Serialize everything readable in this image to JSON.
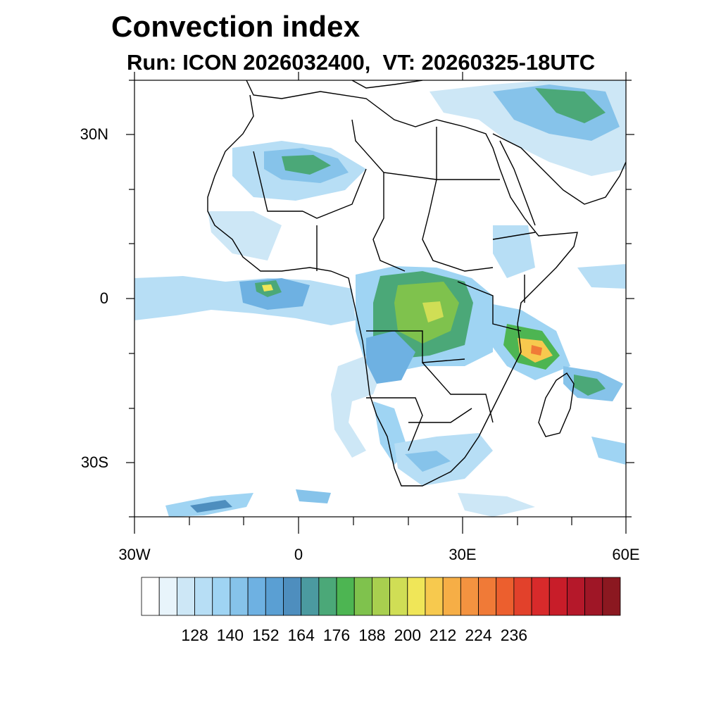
{
  "title": "Convection index",
  "subtitle": "Run: ICON 2026032400,  VT: 20260325-18UTC",
  "map": {
    "lat_labels": [
      "30N",
      "0",
      "30S"
    ],
    "lon_labels": [
      "30W",
      "0",
      "30E",
      "60E"
    ]
  },
  "colorbar": {
    "colors": [
      "#ffffff",
      "#e8f4fb",
      "#cde7f6",
      "#b7def5",
      "#9fd4f3",
      "#86c3ea",
      "#6eb1e2",
      "#5a9fd3",
      "#4e8ebe",
      "#4b9aa0",
      "#4ba878",
      "#4db552",
      "#7fc24d",
      "#a8cf4f",
      "#d0de55",
      "#f0e658",
      "#f7c94e",
      "#f6ae46",
      "#f49340",
      "#f07a37",
      "#ec5f2e",
      "#e2412b",
      "#d82a2b",
      "#c81d29",
      "#b5182a",
      "#9f1626",
      "#8b1820"
    ],
    "labels": [
      "128",
      "140",
      "152",
      "164",
      "176",
      "188",
      "200",
      "212",
      "224",
      "236"
    ]
  }
}
